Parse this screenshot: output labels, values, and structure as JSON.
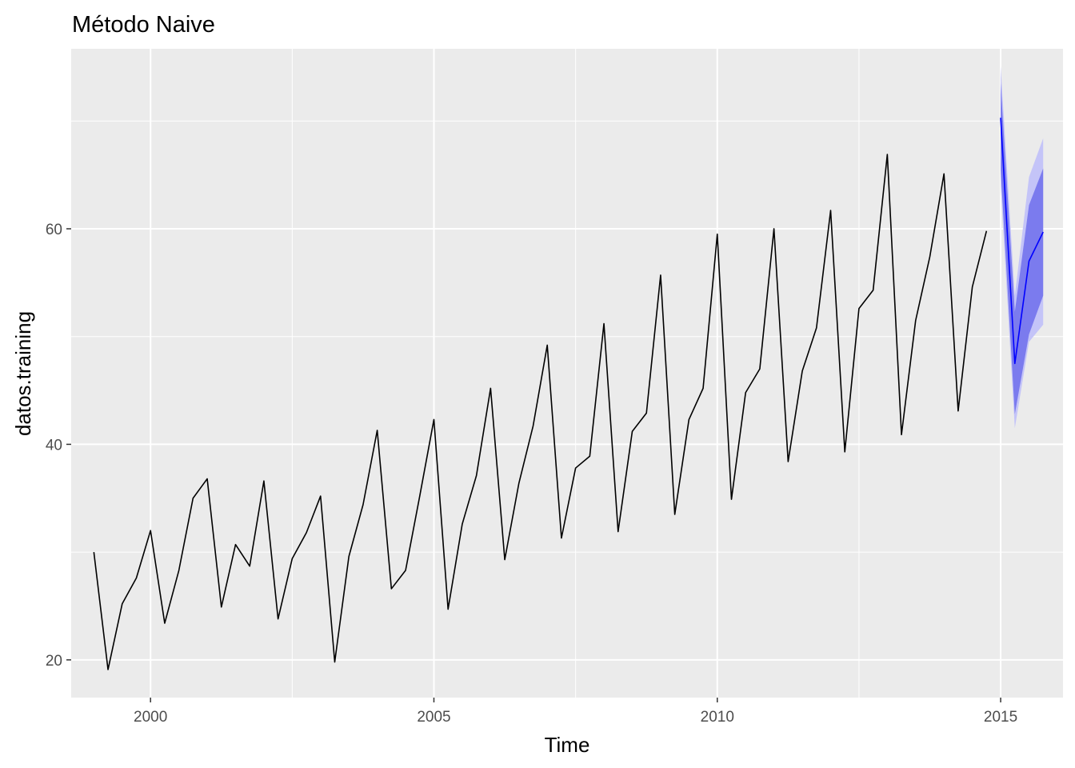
{
  "chart_data": {
    "type": "line",
    "title": "Método Naive",
    "xlabel": "Time",
    "ylabel": "datos.training",
    "xlim": [
      1998.6,
      2016.1
    ],
    "ylim": [
      16.5,
      76.7
    ],
    "x_ticks": [
      2000,
      2005,
      2010,
      2015
    ],
    "x_tick_labels": [
      "2000",
      "2005",
      "2010",
      "2015"
    ],
    "y_ticks": [
      20,
      40,
      60
    ],
    "y_tick_labels": [
      "20",
      "40",
      "60"
    ],
    "grid": true,
    "colors": {
      "panel_bg": "#ebebeb",
      "grid": "#ffffff",
      "series": "#000000",
      "forecast": "#0000ff",
      "band80": "#7b7bee",
      "band95": "#c4c4f8",
      "tick": "#333333"
    },
    "series": [
      {
        "x": [
          1999.0,
          1999.25,
          1999.5,
          1999.75,
          2000.0,
          2000.25,
          2000.5,
          2000.75,
          2001.0,
          2001.25,
          2001.5,
          2001.75,
          2002.0,
          2002.25,
          2002.5,
          2002.75,
          2003.0,
          2003.25,
          2003.5,
          2003.75,
          2004.0,
          2004.25,
          2004.5,
          2004.75,
          2005.0,
          2005.25,
          2005.5,
          2005.75,
          2006.0,
          2006.25,
          2006.5,
          2006.75,
          2007.0,
          2007.25,
          2007.5,
          2007.75,
          2008.0,
          2008.25,
          2008.5,
          2008.75,
          2009.0,
          2009.25,
          2009.5,
          2009.75,
          2010.0,
          2010.25,
          2010.5,
          2010.75,
          2011.0,
          2011.25,
          2011.5,
          2011.75,
          2012.0,
          2012.25,
          2012.5,
          2012.75,
          2013.0,
          2013.25,
          2013.5,
          2013.75,
          2014.0,
          2014.25,
          2014.5,
          2014.75
        ],
        "values": [
          30.0,
          19.1,
          25.2,
          27.6,
          32.0,
          23.4,
          28.3,
          35.0,
          36.8,
          24.9,
          30.7,
          28.7,
          36.6,
          23.8,
          29.4,
          31.8,
          35.2,
          19.8,
          29.6,
          34.4,
          41.3,
          26.6,
          28.3,
          35.2,
          42.3,
          24.7,
          32.6,
          37.1,
          45.2,
          29.3,
          36.4,
          41.7,
          49.2,
          31.3,
          37.8,
          38.9,
          51.2,
          31.9,
          41.2,
          42.9,
          55.7,
          33.5,
          42.3,
          45.2,
          59.5,
          34.9,
          44.8,
          47.0,
          60.0,
          38.4,
          46.8,
          50.8,
          61.7,
          39.3,
          52.6,
          54.3,
          66.9,
          40.9,
          51.5,
          57.4,
          65.1,
          43.1,
          54.6,
          59.8
        ]
      },
      {
        "name": "forecast",
        "x": [
          2015.0,
          2015.25,
          2015.5,
          2015.75
        ],
        "values": [
          70.3,
          47.5,
          57.0,
          59.7
        ],
        "lo80": [
          65.5,
          42.8,
          50.2,
          53.8
        ],
        "hi80": [
          73.5,
          52.3,
          62.2,
          65.6
        ],
        "lo95": [
          64.0,
          41.5,
          49.5,
          51.1
        ],
        "hi95": [
          75.1,
          53.8,
          64.8,
          68.4
        ]
      }
    ]
  }
}
